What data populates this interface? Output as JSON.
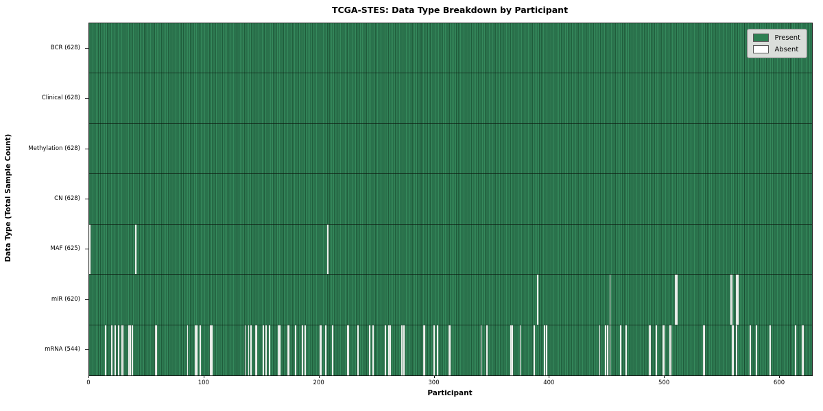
{
  "figure": {
    "background": "#ffffff"
  },
  "legend": {
    "items": [
      {
        "label": "Present",
        "color": "#2e8052"
      },
      {
        "label": "Absent",
        "color": "#ffffff"
      }
    ]
  },
  "chart_data": {
    "type": "heatmap",
    "title": "TCGA-STES: Data Type Breakdown by Participant",
    "xlabel": "Participant",
    "ylabel": "Data Type (Total Sample Count)",
    "legend": [
      "Present",
      "Absent"
    ],
    "legend_position": "upper right",
    "colors": {
      "present": "#2e8052",
      "absent": "#ffffff",
      "row_separator": "#1a1a1a"
    },
    "n_participants": 628,
    "x_range": [
      0,
      628
    ],
    "x_ticks": [
      0,
      100,
      200,
      300,
      400,
      500,
      600
    ],
    "rows": [
      {
        "name": "BCR",
        "label": "BCR (628)",
        "present_count": 628,
        "absent_count": 0,
        "absent_participants": []
      },
      {
        "name": "Clinical",
        "label": "Clinical (628)",
        "present_count": 628,
        "absent_count": 0,
        "absent_participants": []
      },
      {
        "name": "Methylation",
        "label": "Methylation (628)",
        "present_count": 628,
        "absent_count": 0,
        "absent_participants": []
      },
      {
        "name": "CN",
        "label": "CN (628)",
        "present_count": 628,
        "absent_count": 0,
        "absent_participants": []
      },
      {
        "name": "MAF",
        "label": "MAF (625)",
        "present_count": 625,
        "absent_count": 3,
        "absent_participants": [
          0,
          40,
          207
        ]
      },
      {
        "name": "miR",
        "label": "miR (620)",
        "present_count": 620,
        "absent_count": 8,
        "absent_participants": [
          389,
          452,
          509,
          510,
          557,
          558,
          562,
          563
        ]
      },
      {
        "name": "mRNA",
        "label": "mRNA (544)",
        "present_count": 544,
        "absent_count": 84,
        "absent_participants": [
          14,
          19,
          22,
          25,
          28,
          29,
          34,
          35,
          37,
          57,
          58,
          85,
          92,
          93,
          96,
          105,
          106,
          135,
          138,
          140,
          144,
          145,
          151,
          153,
          156,
          164,
          165,
          172,
          173,
          179,
          185,
          187,
          200,
          201,
          205,
          211,
          224,
          225,
          233,
          243,
          246,
          257,
          260,
          261,
          271,
          273,
          290,
          291,
          299,
          302,
          312,
          313,
          340,
          345,
          366,
          367,
          374,
          386,
          395,
          397,
          443,
          448,
          450,
          452,
          461,
          466,
          486,
          487,
          492,
          498,
          499,
          504,
          505,
          533,
          534,
          558,
          559,
          562,
          574,
          579,
          591,
          613,
          619,
          620
        ]
      }
    ]
  }
}
